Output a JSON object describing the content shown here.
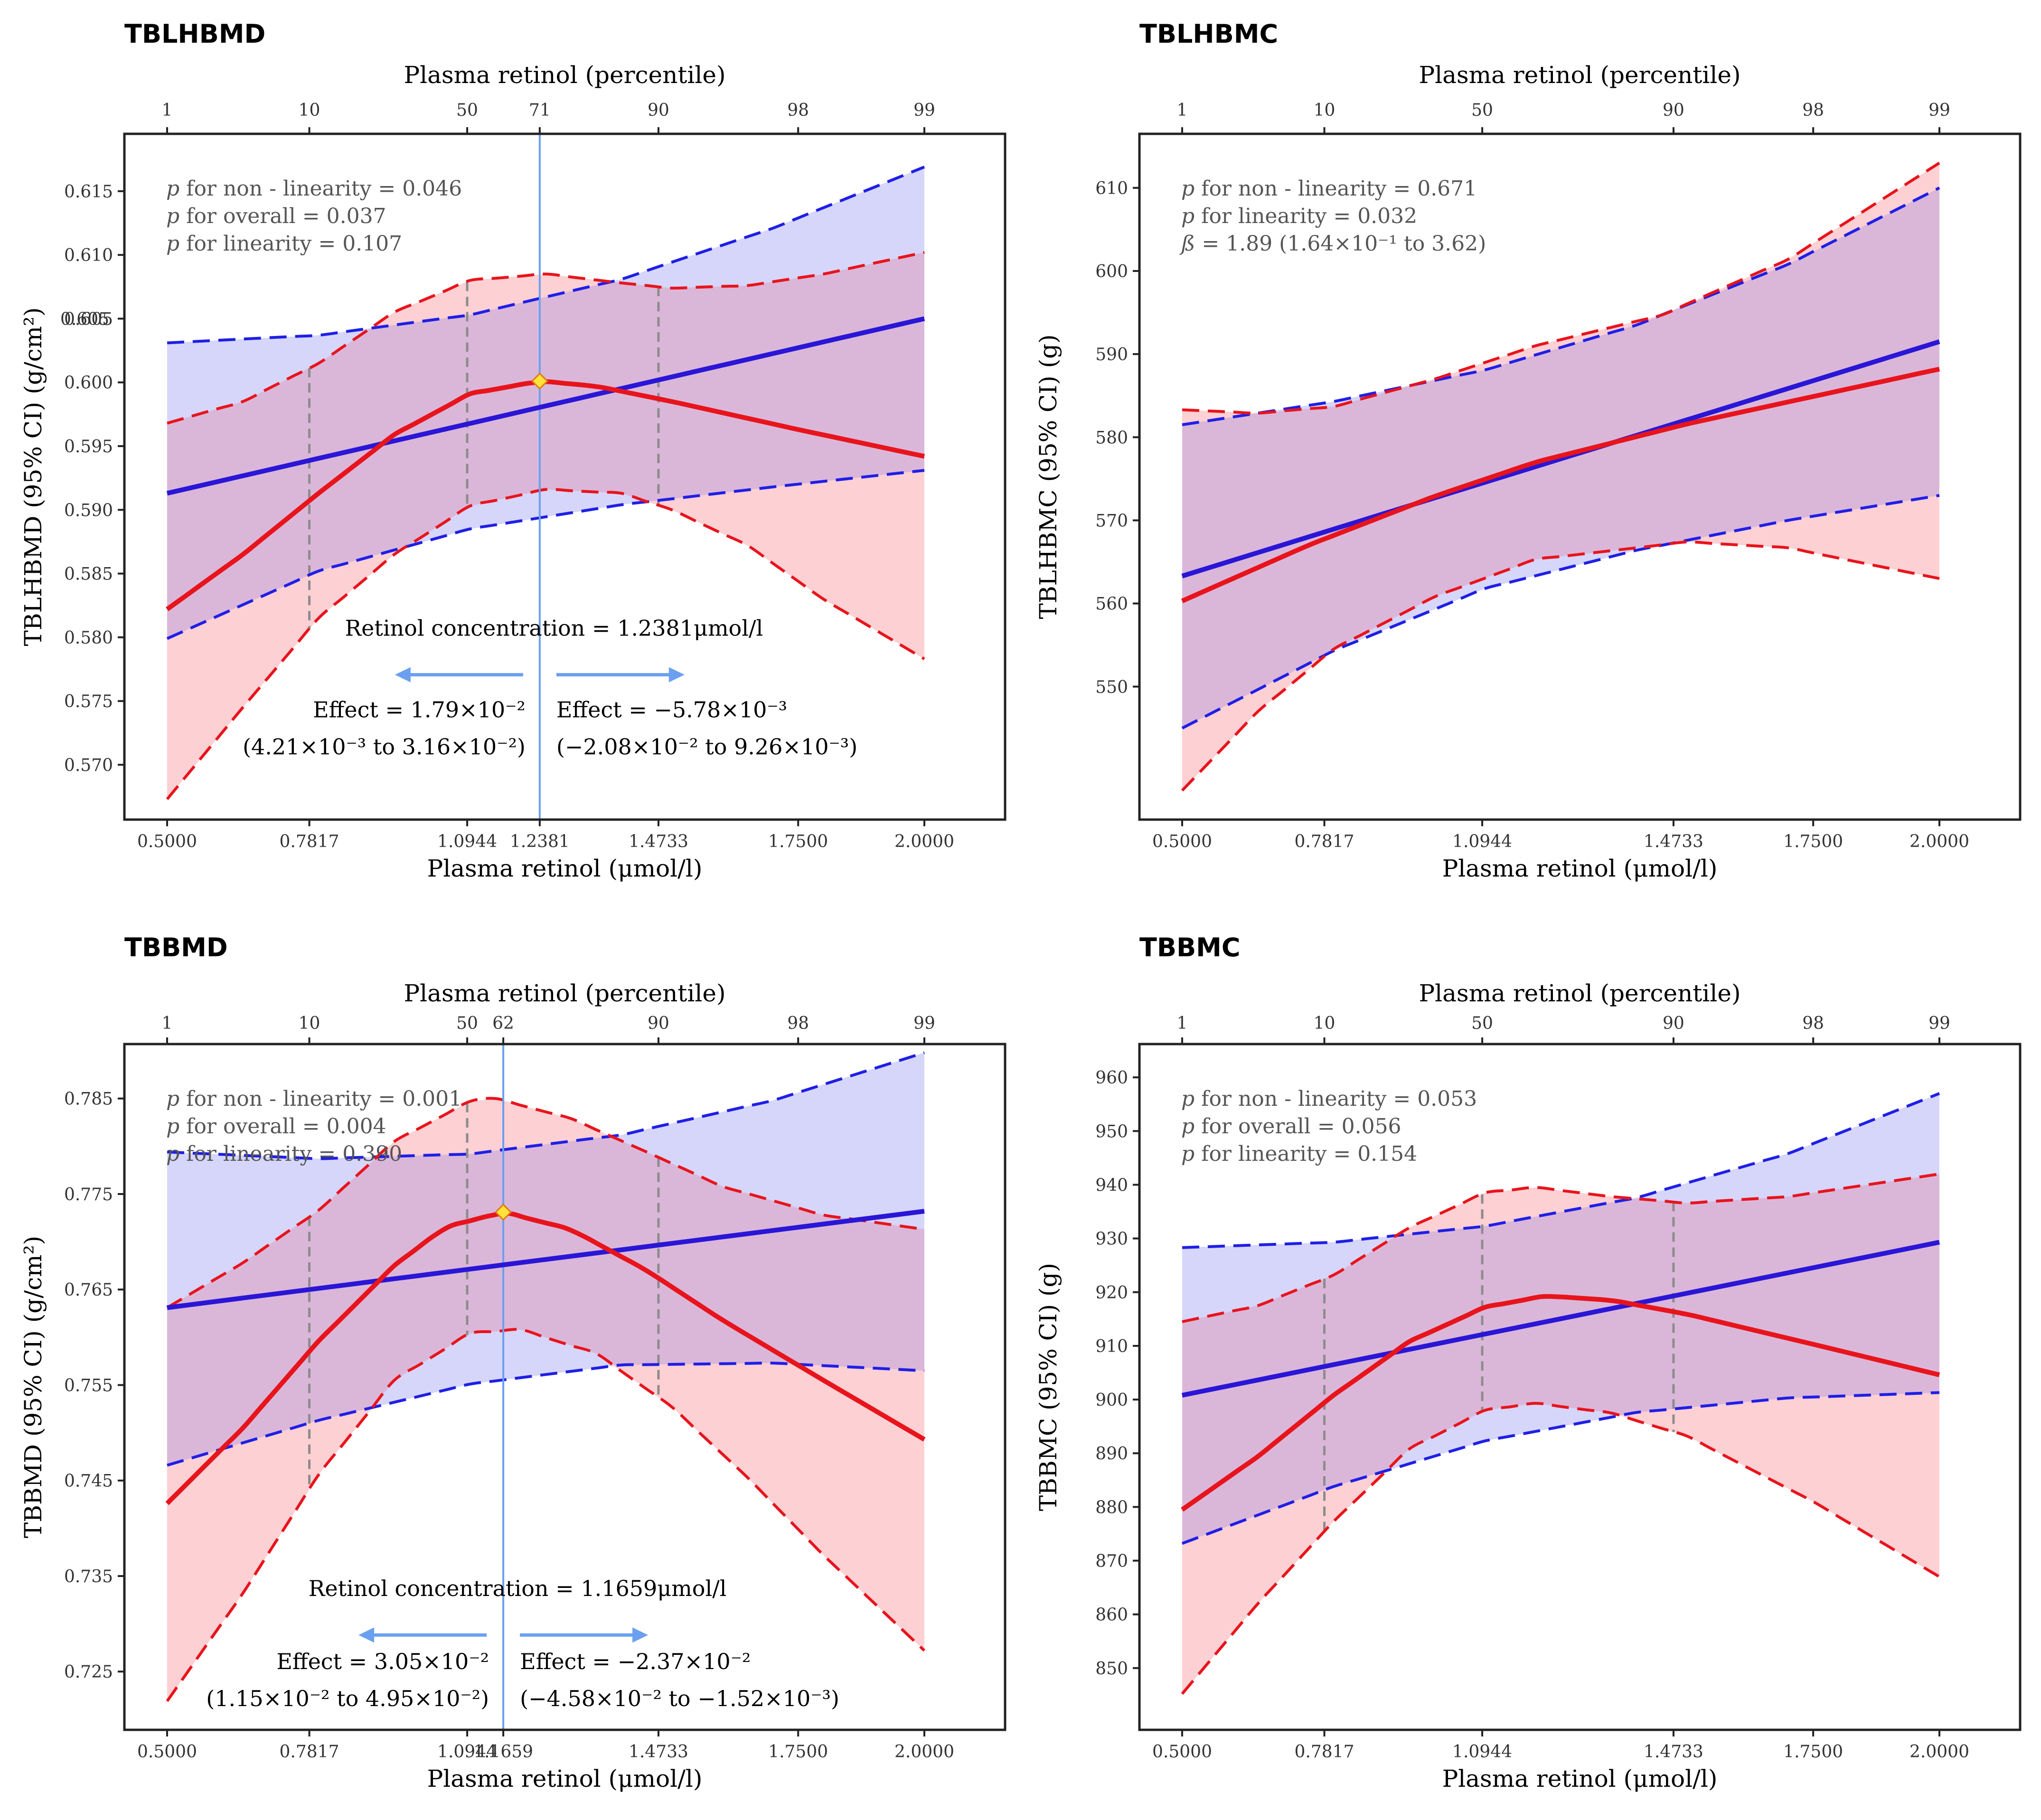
{
  "colors": {
    "linear_line": "#2a16d6",
    "linear_ci": "#1f1fe6",
    "linear_fill": "#d6d6fb",
    "spline_line": "#e8141c",
    "spline_fill": "#fdd0d4",
    "overlap_fill": "#dab7d9",
    "marker": "#6b9ff0",
    "guide": "#8c8c8c",
    "frame": "#222222",
    "point_fill": "#ffe23a"
  },
  "chart_data": [
    {
      "type": "line",
      "title": "TBLHBMD",
      "xlabel": "Plasma retinol (μmol/l)",
      "ylabel": "TBLHBMD (95% CI) (g/cm²)",
      "top_axis_label": "Plasma retinol (percentile)",
      "xlim": [
        0.5,
        2.0
      ],
      "ylim": [
        0.5657,
        0.6195
      ],
      "x_ticks": [
        0.5,
        0.7817,
        1.0944,
        1.4733,
        1.75,
        2.0
      ],
      "x_tick_labels": [
        "0.5000",
        "0.7817",
        "1.0944",
        "1.4733",
        "1.7500",
        "2.0000"
      ],
      "y_ticks": [
        0.57,
        0.575,
        0.58,
        0.585,
        0.59,
        0.595,
        0.6,
        0.605,
        0.61,
        0.615
      ],
      "y_tick_labels": [
        "0.570",
        "0.575",
        "0.580",
        "0.585",
        "0.590",
        "0.595",
        "0.600",
        "0.605",
        "0.610",
        "0.615"
      ],
      "extra_y_tick_label": "0.605",
      "top_ticks": [
        {
          "x": 0.5,
          "label": "1"
        },
        {
          "x": 0.7817,
          "label": "10"
        },
        {
          "x": 1.0944,
          "label": "50"
        },
        {
          "x": 1.2381,
          "label": "71"
        },
        {
          "x": 1.4733,
          "label": "90"
        },
        {
          "x": 1.75,
          "label": "98"
        },
        {
          "x": 2.0,
          "label": "99"
        }
      ],
      "guide_lines": [
        0.7817,
        1.0944,
        1.4733
      ],
      "stats": [
        {
          "p": "p",
          "text": " for non - linearity = 0.046"
        },
        {
          "p": "p",
          "text": " for overall = 0.037"
        },
        {
          "p": "p",
          "text": " for linearity = 0.107"
        }
      ],
      "inflection": {
        "x": 1.2381,
        "y": 0.6001,
        "x_label": "1.2381",
        "concentration_text": "Retinol concentration = 1.2381μmol/l",
        "left_effect": "Effect = 1.79×10⁻²",
        "left_ci": "(4.21×10⁻³ to 3.16×10⁻²)",
        "right_effect": "Effect = −5.78×10⁻³",
        "right_ci": "(−2.08×10⁻² to 9.26×10⁻³)"
      },
      "series": [
        {
          "name": "linear",
          "x": [
            0.5,
            2.0
          ],
          "y": [
            0.5913,
            0.605
          ]
        },
        {
          "name": "linear_upper",
          "x": [
            0.5,
            0.8,
            1.1,
            1.4,
            1.7,
            2.0
          ],
          "y": [
            0.6031,
            0.6037,
            0.6053,
            0.6081,
            0.6121,
            0.6169
          ]
        },
        {
          "name": "linear_lower",
          "x": [
            0.5,
            0.8,
            1.1,
            1.4,
            1.7,
            2.0
          ],
          "y": [
            0.5799,
            0.5852,
            0.5885,
            0.5904,
            0.5918,
            0.5931
          ]
        },
        {
          "name": "spline",
          "x": [
            0.5,
            0.65,
            0.8,
            0.95,
            1.1,
            1.2381,
            1.35,
            1.5,
            1.75,
            2.0
          ],
          "y": [
            0.5822,
            0.5865,
            0.5913,
            0.5959,
            0.5991,
            0.6001,
            0.5997,
            0.5985,
            0.5963,
            0.5942
          ]
        },
        {
          "name": "spline_upper",
          "x": [
            0.5,
            0.65,
            0.8,
            0.95,
            1.1,
            1.25,
            1.4,
            1.5,
            1.65,
            1.8,
            2.0
          ],
          "y": [
            0.5968,
            0.5985,
            0.6015,
            0.6055,
            0.608,
            0.6085,
            0.6078,
            0.6074,
            0.6076,
            0.6085,
            0.6102
          ]
        },
        {
          "name": "spline_lower",
          "x": [
            0.5,
            0.65,
            0.8,
            0.95,
            1.1,
            1.25,
            1.4,
            1.5,
            1.65,
            1.8,
            2.0
          ],
          "y": [
            0.5673,
            0.5745,
            0.5815,
            0.5865,
            0.5903,
            0.5916,
            0.5913,
            0.59,
            0.5872,
            0.583,
            0.5783
          ]
        }
      ]
    },
    {
      "type": "line",
      "title": "TBLHBMC",
      "xlabel": "Plasma retinol (μmol/l)",
      "ylabel": "TBLHBMC (95% CI) (g)",
      "top_axis_label": "Plasma retinol (percentile)",
      "xlim": [
        0.5,
        2.0
      ],
      "ylim": [
        534,
        616.5
      ],
      "x_ticks": [
        0.5,
        0.7817,
        1.0944,
        1.4733,
        1.75,
        2.0
      ],
      "x_tick_labels": [
        "0.5000",
        "0.7817",
        "1.0944",
        "1.4733",
        "1.7500",
        "2.0000"
      ],
      "y_ticks": [
        550,
        560,
        570,
        580,
        590,
        600,
        610
      ],
      "y_tick_labels": [
        "550",
        "560",
        "570",
        "580",
        "590",
        "600",
        "610"
      ],
      "top_ticks": [
        {
          "x": 0.5,
          "label": "1"
        },
        {
          "x": 0.7817,
          "label": "10"
        },
        {
          "x": 1.0944,
          "label": "50"
        },
        {
          "x": 1.4733,
          "label": "90"
        },
        {
          "x": 1.75,
          "label": "98"
        },
        {
          "x": 2.0,
          "label": "99"
        }
      ],
      "guide_lines": [],
      "stats": [
        {
          "p": "p",
          "text": " for non - linearity = 0.671"
        },
        {
          "p": "p",
          "text": " for linearity = 0.032"
        },
        {
          "p": "ß",
          "text": " = 1.89 (1.64×10⁻¹ to 3.62)"
        }
      ],
      "series": [
        {
          "name": "linear",
          "x": [
            0.5,
            2.0
          ],
          "y": [
            563.3,
            591.5
          ]
        },
        {
          "name": "linear_upper",
          "x": [
            0.5,
            0.8,
            1.1,
            1.4,
            1.7,
            2.0
          ],
          "y": [
            581.5,
            584.3,
            588.1,
            593.5,
            600.8,
            610.0
          ]
        },
        {
          "name": "linear_lower",
          "x": [
            0.5,
            0.8,
            1.1,
            1.4,
            1.7,
            2.0
          ],
          "y": [
            545.0,
            554.3,
            561.8,
            566.4,
            570.0,
            573.0
          ]
        },
        {
          "name": "spline",
          "x": [
            0.5,
            0.75,
            1.0,
            1.2,
            1.5,
            1.75,
            2.0
          ],
          "y": [
            560.3,
            567.0,
            572.9,
            577.0,
            581.6,
            584.9,
            588.2
          ]
        },
        {
          "name": "spline_upper",
          "x": [
            0.5,
            0.65,
            0.8,
            1.0,
            1.2,
            1.45,
            1.7,
            2.0
          ],
          "y": [
            583.3,
            582.9,
            583.7,
            587.0,
            591.0,
            594.7,
            601.4,
            613.0
          ]
        },
        {
          "name": "spline_lower",
          "x": [
            0.5,
            0.65,
            0.8,
            1.0,
            1.2,
            1.5,
            1.7,
            2.0
          ],
          "y": [
            537.5,
            547.0,
            554.5,
            560.8,
            565.3,
            567.4,
            566.7,
            563.0
          ]
        }
      ]
    },
    {
      "type": "line",
      "title": "TBBMD",
      "xlabel": "Plasma retinol (μmol/l)",
      "ylabel": "TBBMD (95% CI) (g/cm²)",
      "top_axis_label": "Plasma retinol (percentile)",
      "xlim": [
        0.5,
        2.0
      ],
      "ylim": [
        0.7189,
        0.7907
      ],
      "x_ticks": [
        0.5,
        0.7817,
        1.0944,
        1.4733,
        1.75,
        2.0
      ],
      "x_tick_labels": [
        "0.5000",
        "0.7817",
        "1.0944",
        "1.4733",
        "1.7500",
        "2.0000"
      ],
      "y_ticks": [
        0.725,
        0.735,
        0.745,
        0.755,
        0.765,
        0.775,
        0.785
      ],
      "y_tick_labels": [
        "0.725",
        "0.735",
        "0.745",
        "0.755",
        "0.765",
        "0.775",
        "0.785"
      ],
      "top_ticks": [
        {
          "x": 0.5,
          "label": "1"
        },
        {
          "x": 0.7817,
          "label": "10"
        },
        {
          "x": 1.0944,
          "label": "50"
        },
        {
          "x": 1.1659,
          "label": "62"
        },
        {
          "x": 1.4733,
          "label": "90"
        },
        {
          "x": 1.75,
          "label": "98"
        },
        {
          "x": 2.0,
          "label": "99"
        }
      ],
      "guide_lines": [
        0.7817,
        1.0944,
        1.4733
      ],
      "stats": [
        {
          "p": "p",
          "text": " for non - linearity = 0.001"
        },
        {
          "p": "p",
          "text": " for overall = 0.004"
        },
        {
          "p": "p",
          "text": " for linearity = 0.390"
        }
      ],
      "inflection": {
        "x": 1.1659,
        "y": 0.7731,
        "x_label": "1.1659",
        "concentration_text": "Retinol concentration = 1.1659μmol/l",
        "left_effect": "Effect = 3.05×10⁻²",
        "left_ci": "(1.15×10⁻² to 4.95×10⁻²)",
        "right_effect": "Effect = −2.37×10⁻²",
        "right_ci": "(−4.58×10⁻² to −1.52×10⁻³)"
      },
      "series": [
        {
          "name": "linear",
          "x": [
            0.5,
            2.0
          ],
          "y": [
            0.7631,
            0.7732
          ]
        },
        {
          "name": "linear_upper",
          "x": [
            0.5,
            0.8,
            1.1,
            1.4,
            1.7,
            2.0
          ],
          "y": [
            0.7794,
            0.7787,
            0.7792,
            0.7812,
            0.7848,
            0.7898
          ]
        },
        {
          "name": "linear_lower",
          "x": [
            0.5,
            0.8,
            1.1,
            1.4,
            1.7,
            2.0
          ],
          "y": [
            0.7466,
            0.7513,
            0.7551,
            0.7571,
            0.7573,
            0.7565
          ]
        },
        {
          "name": "spline",
          "x": [
            0.5,
            0.65,
            0.8,
            0.95,
            1.05,
            1.1659,
            1.3,
            1.45,
            1.6,
            1.8,
            2.0
          ],
          "y": [
            0.7426,
            0.7505,
            0.7596,
            0.7675,
            0.7715,
            0.7731,
            0.7713,
            0.767,
            0.7618,
            0.7555,
            0.7493
          ]
        },
        {
          "name": "spline_upper",
          "x": [
            0.5,
            0.65,
            0.8,
            0.95,
            1.1,
            1.15,
            1.3,
            1.45,
            1.6,
            1.8,
            2.0
          ],
          "y": [
            0.7631,
            0.7678,
            0.7733,
            0.7805,
            0.7847,
            0.785,
            0.7829,
            0.7794,
            0.7758,
            0.7728,
            0.7713
          ]
        },
        {
          "name": "spline_lower",
          "x": [
            0.5,
            0.65,
            0.8,
            0.95,
            1.1,
            1.2,
            1.35,
            1.5,
            1.65,
            1.8,
            2.0
          ],
          "y": [
            0.7219,
            0.7332,
            0.7456,
            0.7555,
            0.7604,
            0.7608,
            0.7583,
            0.7527,
            0.7453,
            0.7372,
            0.7272
          ]
        }
      ]
    },
    {
      "type": "line",
      "title": "TBBMC",
      "xlabel": "Plasma retinol (μmol/l)",
      "ylabel": "TBBMC (95% CI) (g)",
      "top_axis_label": "Plasma retinol (percentile)",
      "xlim": [
        0.5,
        2.0
      ],
      "ylim": [
        838.5,
        966.2
      ],
      "x_ticks": [
        0.5,
        0.7817,
        1.0944,
        1.4733,
        1.75,
        2.0
      ],
      "x_tick_labels": [
        "0.5000",
        "0.7817",
        "1.0944",
        "1.4733",
        "1.7500",
        "2.0000"
      ],
      "y_ticks": [
        850,
        860,
        870,
        880,
        890,
        900,
        910,
        920,
        930,
        940,
        950,
        960
      ],
      "y_tick_labels": [
        "850",
        "860",
        "870",
        "880",
        "890",
        "900",
        "910",
        "920",
        "930",
        "940",
        "950",
        "960"
      ],
      "top_ticks": [
        {
          "x": 0.5,
          "label": "1"
        },
        {
          "x": 0.7817,
          "label": "10"
        },
        {
          "x": 1.0944,
          "label": "50"
        },
        {
          "x": 1.4733,
          "label": "90"
        },
        {
          "x": 1.75,
          "label": "98"
        },
        {
          "x": 2.0,
          "label": "99"
        }
      ],
      "guide_lines": [
        0.7817,
        1.0944,
        1.4733
      ],
      "stats": [
        {
          "p": "p",
          "text": " for non - linearity = 0.053"
        },
        {
          "p": "p",
          "text": " for overall = 0.056"
        },
        {
          "p": "p",
          "text": " for linearity = 0.154"
        }
      ],
      "series": [
        {
          "name": "linear",
          "x": [
            0.5,
            2.0
          ],
          "y": [
            900.8,
            929.3
          ]
        },
        {
          "name": "linear_upper",
          "x": [
            0.5,
            0.8,
            1.1,
            1.4,
            1.7,
            2.0
          ],
          "y": [
            928.3,
            929.3,
            932.3,
            937.6,
            945.8,
            957.0
          ]
        },
        {
          "name": "linear_lower",
          "x": [
            0.5,
            0.8,
            1.1,
            1.4,
            1.7,
            2.0
          ],
          "y": [
            873.2,
            883.8,
            892.3,
            897.6,
            900.3,
            901.3
          ]
        },
        {
          "name": "spline",
          "x": [
            0.5,
            0.65,
            0.8,
            0.95,
            1.1,
            1.22,
            1.35,
            1.5,
            1.75,
            2.0
          ],
          "y": [
            879.5,
            889.4,
            900.8,
            910.8,
            917.2,
            919.3,
            918.5,
            915.9,
            910.3,
            904.6
          ]
        },
        {
          "name": "spline_upper",
          "x": [
            0.5,
            0.65,
            0.8,
            0.95,
            1.1,
            1.2,
            1.35,
            1.5,
            1.7,
            2.0
          ],
          "y": [
            914.5,
            917.5,
            923.2,
            932.0,
            938.5,
            939.5,
            937.8,
            936.6,
            937.8,
            942.0
          ]
        },
        {
          "name": "spline_lower",
          "x": [
            0.5,
            0.65,
            0.8,
            0.95,
            1.1,
            1.2,
            1.35,
            1.5,
            1.75,
            2.0
          ],
          "y": [
            845.2,
            862.0,
            877.3,
            890.8,
            898.0,
            899.3,
            897.5,
            893.2,
            881.0,
            867.0
          ]
        }
      ]
    }
  ]
}
